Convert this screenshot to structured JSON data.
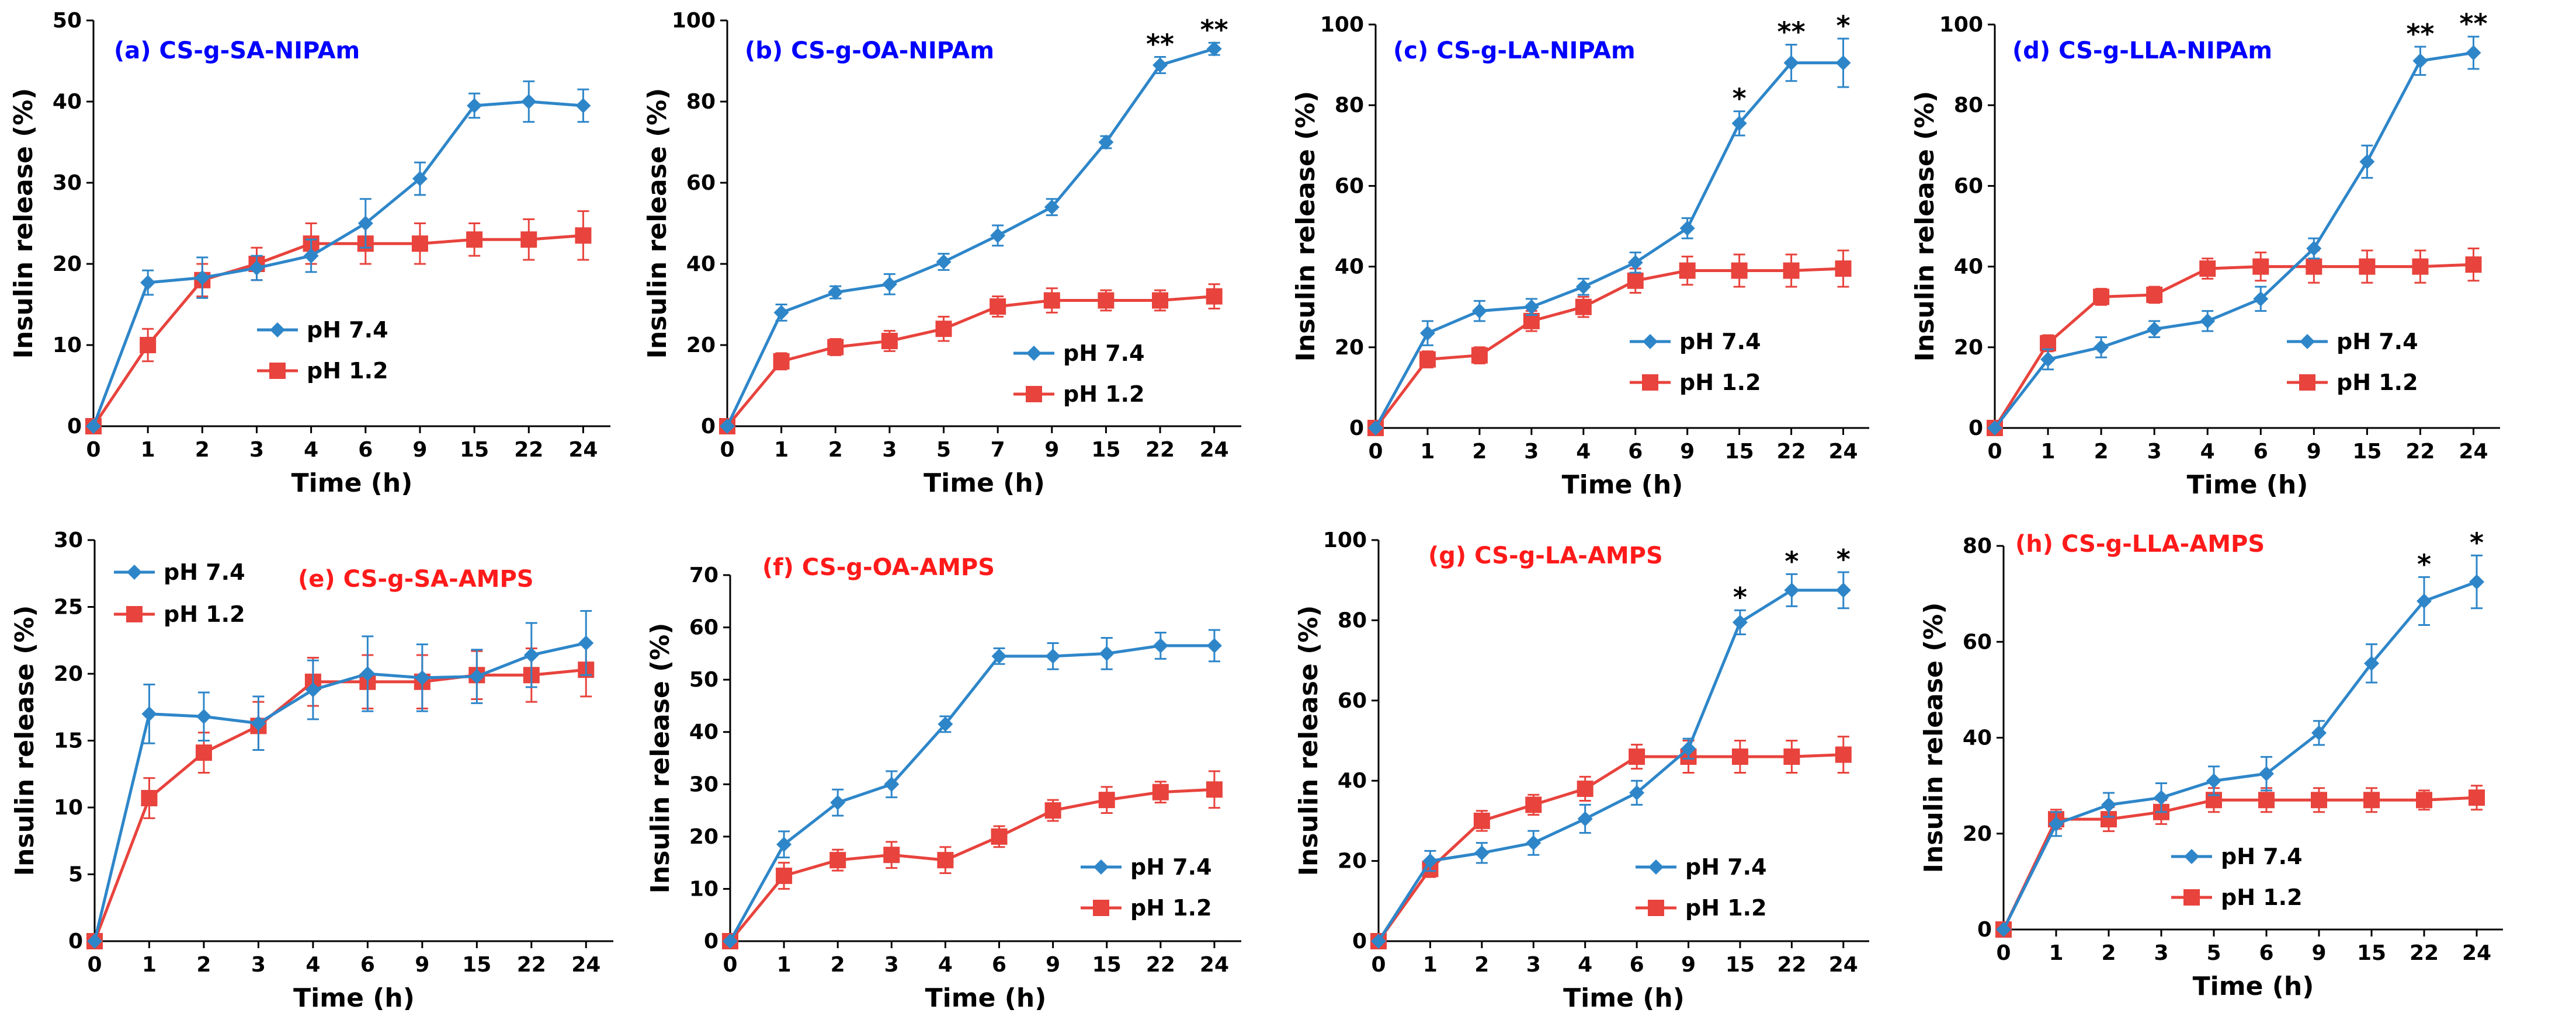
{
  "figure": {
    "colors": {
      "ph74": "#2E86C9",
      "ph12": "#E8433D",
      "title_blue": "#0000FF",
      "title_red": "#FF1A1A"
    }
  },
  "chart_data": [
    {
      "id": "a",
      "type": "line",
      "title": "(a) CS-g-SA-NIPAm",
      "title_color": "blue",
      "xlabel": "Time (h)",
      "ylabel": "Insulin release (%)",
      "categories": [
        "0",
        "1",
        "2",
        "3",
        "4",
        "6",
        "9",
        "15",
        "22",
        "24"
      ],
      "ylim": [
        0,
        50
      ],
      "yticks": [
        0,
        10,
        20,
        30,
        40,
        50
      ],
      "legend_order": [
        "pH 7.4",
        "pH 1.2"
      ],
      "series": [
        {
          "name": "pH 7.4",
          "marker": "diamond",
          "values": [
            0,
            17.7,
            18.3,
            19.5,
            21.0,
            25.0,
            30.5,
            39.5,
            40.0,
            39.5
          ],
          "errors": [
            0,
            1.5,
            2.5,
            1.5,
            2.0,
            3.0,
            2.0,
            1.5,
            2.5,
            2.0
          ]
        },
        {
          "name": "pH 1.2",
          "marker": "square",
          "values": [
            0,
            10.0,
            18.0,
            20.0,
            22.5,
            22.5,
            22.5,
            23.0,
            23.0,
            23.5
          ],
          "errors": [
            0,
            2.0,
            2.0,
            2.0,
            2.5,
            2.5,
            2.5,
            2.0,
            2.5,
            3.0
          ]
        }
      ],
      "stars": []
    },
    {
      "id": "b",
      "type": "line",
      "title": "(b) CS-g-OA-NIPAm",
      "title_color": "blue",
      "xlabel": "Time (h)",
      "ylabel": "Insulin release (%)",
      "categories": [
        "0",
        "1",
        "2",
        "3",
        "5",
        "7",
        "9",
        "15",
        "22",
        "24"
      ],
      "ylim": [
        0,
        100
      ],
      "yticks": [
        0,
        20,
        40,
        60,
        80,
        100
      ],
      "legend_order": [
        "pH 7.4",
        "pH 1.2"
      ],
      "series": [
        {
          "name": "pH 7.4",
          "marker": "diamond",
          "values": [
            0,
            28.0,
            33.0,
            35.0,
            40.5,
            47.0,
            54.0,
            70.0,
            89.0,
            93.0
          ],
          "errors": [
            0,
            2.0,
            1.5,
            2.5,
            2.0,
            2.5,
            2.0,
            1.5,
            2.0,
            1.5
          ]
        },
        {
          "name": "pH 1.2",
          "marker": "square",
          "values": [
            0,
            16.0,
            19.5,
            21.0,
            24.0,
            29.5,
            31.0,
            31.0,
            31.0,
            32.0
          ],
          "errors": [
            0,
            2.0,
            2.0,
            2.5,
            3.0,
            2.5,
            3.0,
            2.5,
            2.5,
            3.0
          ]
        }
      ],
      "stars": [
        {
          "index": 8,
          "label": "**"
        },
        {
          "index": 9,
          "label": "**"
        }
      ]
    },
    {
      "id": "c",
      "type": "line",
      "title": "(c) CS-g-LA-NIPAm",
      "title_color": "blue",
      "xlabel": "Time (h)",
      "ylabel": "Insulin release (%)",
      "categories": [
        "0",
        "1",
        "2",
        "3",
        "4",
        "6",
        "9",
        "15",
        "22",
        "24"
      ],
      "ylim": [
        0,
        100
      ],
      "yticks": [
        0,
        20,
        40,
        60,
        80,
        100
      ],
      "legend_order": [
        "pH 7.4",
        "pH 1.2"
      ],
      "series": [
        {
          "name": "pH 7.4",
          "marker": "diamond",
          "values": [
            0,
            23.5,
            29.0,
            30.0,
            35.0,
            41.0,
            49.5,
            75.5,
            90.5,
            90.5
          ],
          "errors": [
            0,
            3.0,
            2.5,
            2.0,
            2.0,
            2.5,
            2.5,
            3.0,
            4.5,
            6.0
          ]
        },
        {
          "name": "pH 1.2",
          "marker": "square",
          "values": [
            0,
            17.0,
            18.0,
            26.5,
            30.0,
            36.5,
            39.0,
            39.0,
            39.0,
            39.5
          ],
          "errors": [
            0,
            2.0,
            2.0,
            2.5,
            2.5,
            3.0,
            3.5,
            4.0,
            4.0,
            4.5
          ]
        }
      ],
      "stars": [
        {
          "index": 7,
          "label": "*"
        },
        {
          "index": 8,
          "label": "**"
        },
        {
          "index": 9,
          "label": "*"
        }
      ]
    },
    {
      "id": "d",
      "type": "line",
      "title": "(d) CS-g-LLA-NIPAm",
      "title_color": "blue",
      "xlabel": "Time (h)",
      "ylabel": "Insulin release (%)",
      "categories": [
        "0",
        "1",
        "2",
        "3",
        "4",
        "6",
        "9",
        "15",
        "22",
        "24"
      ],
      "ylim": [
        0,
        100
      ],
      "yticks": [
        0,
        20,
        40,
        60,
        80,
        100
      ],
      "legend_order": [
        "pH 7.4",
        "pH 1.2"
      ],
      "series": [
        {
          "name": "pH 7.4",
          "marker": "diamond",
          "values": [
            0,
            17.0,
            20.0,
            24.5,
            26.5,
            32.0,
            44.5,
            66.0,
            91.0,
            93.0
          ],
          "errors": [
            0,
            2.5,
            2.5,
            2.0,
            2.5,
            3.0,
            2.5,
            4.0,
            3.5,
            4.0
          ]
        },
        {
          "name": "pH 1.2",
          "marker": "square",
          "values": [
            0,
            21.0,
            32.5,
            33.0,
            39.5,
            40.0,
            40.0,
            40.0,
            40.0,
            40.5
          ],
          "errors": [
            0,
            2.0,
            2.0,
            2.0,
            2.5,
            3.5,
            4.0,
            4.0,
            4.0,
            4.0
          ]
        }
      ],
      "stars": [
        {
          "index": 8,
          "label": "**"
        },
        {
          "index": 9,
          "label": "**"
        }
      ]
    },
    {
      "id": "e",
      "type": "line",
      "title": "(e) CS-g-SA-AMPS",
      "title_color": "red",
      "xlabel": "Time (h)",
      "ylabel": "Insulin release (%)",
      "categories": [
        "0",
        "1",
        "2",
        "3",
        "4",
        "6",
        "9",
        "15",
        "22",
        "24"
      ],
      "ylim": [
        0,
        30
      ],
      "yticks": [
        0,
        5,
        10,
        15,
        20,
        25,
        30
      ],
      "legend_order": [
        "pH 7.4",
        "pH 1.2"
      ],
      "series": [
        {
          "name": "pH 7.4",
          "marker": "diamond",
          "values": [
            0,
            17.0,
            16.8,
            16.3,
            18.8,
            20.0,
            19.7,
            19.8,
            21.4,
            22.3
          ],
          "errors": [
            0,
            2.2,
            1.8,
            2.0,
            2.2,
            2.8,
            2.5,
            2.0,
            2.4,
            2.4
          ]
        },
        {
          "name": "pH 1.2",
          "marker": "square",
          "values": [
            0,
            10.7,
            14.1,
            16.1,
            19.4,
            19.4,
            19.4,
            19.9,
            19.9,
            20.3
          ],
          "errors": [
            0,
            1.5,
            1.5,
            1.8,
            1.8,
            2.0,
            2.0,
            1.8,
            2.0,
            2.0
          ]
        }
      ],
      "stars": []
    },
    {
      "id": "f",
      "type": "line",
      "title": "(f) CS-g-OA-AMPS",
      "title_color": "red",
      "xlabel": "Time (h)",
      "ylabel": "Insulin release (%)",
      "categories": [
        "0",
        "1",
        "2",
        "3",
        "4",
        "6",
        "9",
        "15",
        "22",
        "24"
      ],
      "ylim": [
        0,
        70
      ],
      "yticks": [
        0,
        10,
        20,
        30,
        40,
        50,
        60,
        70
      ],
      "legend_order": [
        "pH 7.4",
        "pH 1.2"
      ],
      "series": [
        {
          "name": "pH 7.4",
          "marker": "diamond",
          "values": [
            0,
            18.5,
            26.5,
            30.0,
            41.5,
            54.5,
            54.5,
            55.0,
            56.5,
            56.5
          ],
          "errors": [
            0,
            2.5,
            2.5,
            2.5,
            1.5,
            1.5,
            2.5,
            3.0,
            2.5,
            3.0
          ]
        },
        {
          "name": "pH 1.2",
          "marker": "square",
          "values": [
            0,
            12.5,
            15.5,
            16.5,
            15.5,
            20.0,
            25.0,
            27.0,
            28.5,
            29.0
          ],
          "errors": [
            0,
            2.5,
            2.0,
            2.5,
            2.5,
            2.0,
            2.0,
            2.5,
            2.0,
            3.5
          ]
        }
      ],
      "stars": []
    },
    {
      "id": "g",
      "type": "line",
      "title": "(g) CS-g-LA-AMPS",
      "title_color": "red",
      "xlabel": "Time (h)",
      "ylabel": "Insulin release (%)",
      "categories": [
        "0",
        "1",
        "2",
        "3",
        "4",
        "6",
        "9",
        "15",
        "22",
        "24"
      ],
      "ylim": [
        0,
        100
      ],
      "yticks": [
        0,
        20,
        40,
        60,
        80,
        100
      ],
      "legend_order": [
        "pH 7.4",
        "pH 1.2"
      ],
      "series": [
        {
          "name": "pH 7.4",
          "marker": "diamond",
          "values": [
            0,
            20.0,
            22.0,
            24.5,
            30.5,
            37.0,
            48.0,
            79.5,
            87.5,
            87.5
          ],
          "errors": [
            0,
            2.5,
            2.5,
            3.0,
            3.5,
            3.0,
            2.5,
            3.0,
            4.0,
            4.5
          ]
        },
        {
          "name": "pH 1.2",
          "marker": "square",
          "values": [
            0,
            18.0,
            30.0,
            34.0,
            38.0,
            46.0,
            46.0,
            46.0,
            46.0,
            46.5
          ],
          "errors": [
            0,
            2.0,
            2.5,
            2.5,
            3.0,
            3.0,
            4.0,
            4.0,
            4.0,
            4.5
          ]
        }
      ],
      "stars": [
        {
          "index": 7,
          "label": "*"
        },
        {
          "index": 8,
          "label": "*"
        },
        {
          "index": 9,
          "label": "*"
        }
      ]
    },
    {
      "id": "h",
      "type": "line",
      "title": "(h) CS-g-LLA-AMPS",
      "title_color": "red",
      "xlabel": "Time (h)",
      "ylabel": "Insulin release (%)",
      "categories": [
        "0",
        "1",
        "2",
        "3",
        "5",
        "6",
        "9",
        "15",
        "22",
        "24"
      ],
      "ylim": [
        0,
        80
      ],
      "yticks": [
        0,
        20,
        40,
        60,
        80
      ],
      "legend_order": [
        "pH 7.4",
        "pH 1.2"
      ],
      "series": [
        {
          "name": "pH 7.4",
          "marker": "diamond",
          "values": [
            0,
            22.0,
            26.0,
            27.5,
            31.0,
            32.5,
            41.0,
            55.5,
            68.5,
            72.5
          ],
          "errors": [
            0,
            2.5,
            2.5,
            3.0,
            3.0,
            3.5,
            2.5,
            4.0,
            5.0,
            5.5
          ]
        },
        {
          "name": "pH 1.2",
          "marker": "square",
          "values": [
            0,
            23.0,
            23.0,
            24.5,
            27.0,
            27.0,
            27.0,
            27.0,
            27.0,
            27.5
          ],
          "errors": [
            0,
            2.0,
            2.5,
            2.5,
            2.5,
            2.5,
            2.5,
            2.5,
            2.0,
            2.5
          ]
        }
      ],
      "stars": [
        {
          "index": 8,
          "label": "*"
        },
        {
          "index": 9,
          "label": "*"
        }
      ]
    }
  ]
}
